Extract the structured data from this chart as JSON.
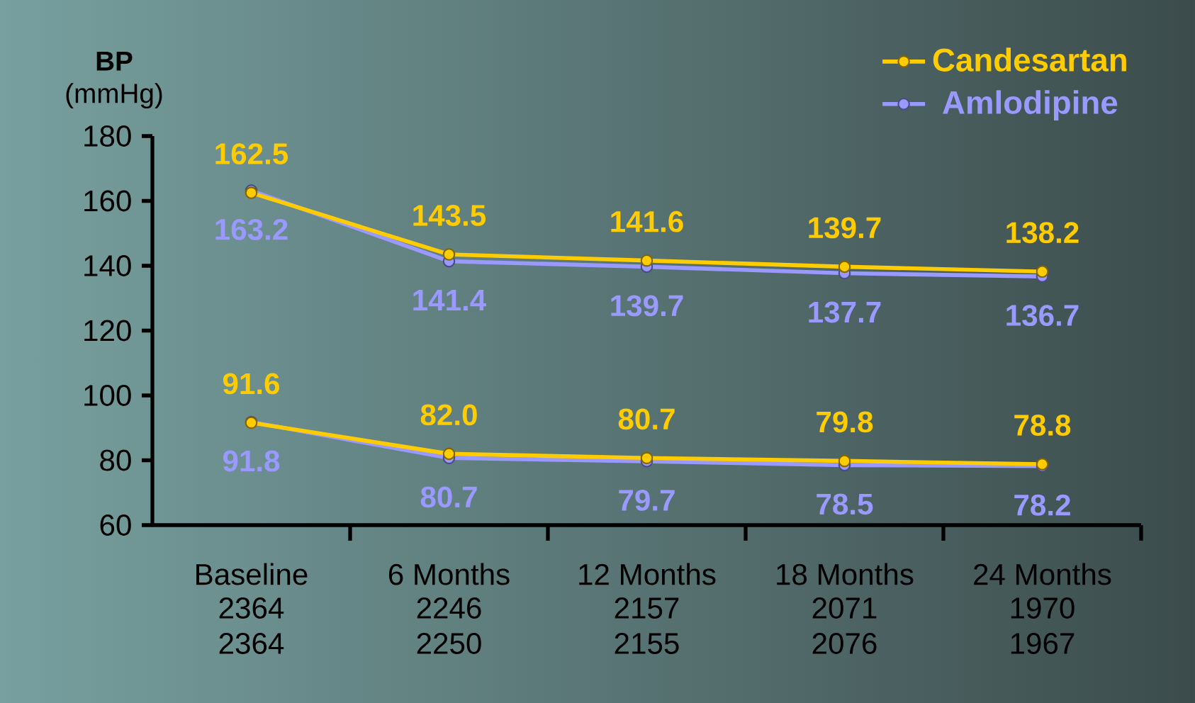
{
  "chart_data": {
    "type": "line",
    "ylabel": "**BP** (mmHg)",
    "categories": [
      "Baseline",
      "6 Months",
      "12 Months",
      "18 Months",
      "24 Months"
    ],
    "series": [
      {
        "name": "Candesartan",
        "color": "#ffcc00",
        "values": [
          162.5,
          143.5,
          141.6,
          139.7,
          138.2
        ],
        "value_labels": [
          "162.5",
          "143.5",
          "141.6",
          "139.7",
          "138.2"
        ]
      },
      {
        "name": "Amlodipine",
        "color": "#9999ff",
        "values": [
          163.2,
          141.4,
          139.7,
          137.7,
          136.7
        ],
        "value_labels": [
          "163.2",
          "141.4",
          "139.7",
          "137.7",
          "136.7"
        ]
      },
      {
        "color": "#ffcc00",
        "values": [
          91.6,
          82.0,
          80.7,
          79.8,
          78.8
        ],
        "value_labels": [
          "91.6",
          "82.0",
          "80.7",
          "79.8",
          "78.8"
        ]
      },
      {
        "color": "#9999ff",
        "values": [
          91.8,
          80.7,
          79.7,
          78.5,
          78.2
        ],
        "value_labels": [
          "91.8",
          "80.7",
          "79.7",
          "78.5",
          "78.2"
        ]
      }
    ],
    "ylim": [
      60,
      180
    ],
    "yticks": [
      60,
      80,
      100,
      120,
      140,
      160,
      180
    ],
    "marker": "circle",
    "legend": "top right",
    "grid": false,
    "annotations": [
      "2364",
      "2246",
      "2157",
      "2071",
      "1970",
      "2364",
      "2250",
      "2155",
      "2076",
      "1967"
    ]
  }
}
